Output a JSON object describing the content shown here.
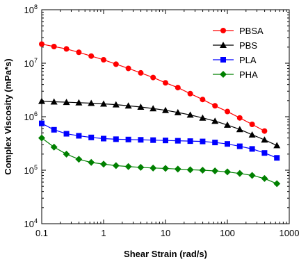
{
  "chart_data": {
    "type": "line",
    "xscale": "log",
    "yscale": "log",
    "xlabel": "Shear Strain (rad/s)",
    "ylabel": "Complex Viscosity (mPa*s)",
    "xlim": [
      0.1,
      1000
    ],
    "ylim": [
      10000,
      100000000
    ],
    "x_ticks": [
      "0.1",
      "1",
      "10",
      "100",
      "1000"
    ],
    "y_ticks": [
      {
        "base": "10",
        "exp": "4",
        "value": 10000
      },
      {
        "base": "10",
        "exp": "5",
        "value": 100000
      },
      {
        "base": "10",
        "exp": "6",
        "value": 1000000
      },
      {
        "base": "10",
        "exp": "7",
        "value": 10000000
      },
      {
        "base": "10",
        "exp": "8",
        "value": 100000000
      }
    ],
    "legend_position": "top-right",
    "x": [
      0.1,
      0.158,
      0.251,
      0.398,
      0.631,
      1.0,
      1.585,
      2.512,
      3.981,
      6.31,
      10.0,
      15.85,
      25.12,
      39.81,
      63.1,
      100.0,
      158.5,
      251.2,
      398.1,
      631.0
    ],
    "series": [
      {
        "name": "PBSA",
        "color": "#ff0000",
        "marker": "circle",
        "values": [
          22800000,
          20500000,
          18500000,
          16000000,
          13600000,
          11600000,
          9600000,
          8000000,
          6600000,
          5400000,
          4300000,
          3500000,
          2700000,
          2100000,
          1600000,
          1250000,
          950000,
          720000,
          540000,
          0
        ]
      },
      {
        "name": "PBS",
        "color": "#000000",
        "marker": "triangle",
        "values": [
          1950000,
          1900000,
          1870000,
          1830000,
          1790000,
          1740000,
          1680000,
          1600000,
          1520000,
          1420000,
          1320000,
          1200000,
          1080000,
          950000,
          830000,
          700000,
          580000,
          460000,
          370000,
          290000
        ]
      },
      {
        "name": "PLA",
        "color": "#0000ff",
        "marker": "square",
        "values": [
          750000,
          570000,
          480000,
          440000,
          410000,
          390000,
          380000,
          375000,
          370000,
          365000,
          360000,
          355000,
          350000,
          345000,
          330000,
          310000,
          280000,
          250000,
          210000,
          170000
        ]
      },
      {
        "name": "PHA",
        "color": "#008000",
        "marker": "diamond",
        "values": [
          400000,
          270000,
          200000,
          160000,
          140000,
          130000,
          122000,
          117000,
          113000,
          110000,
          108000,
          105000,
          102000,
          100000,
          97000,
          93000,
          87000,
          80000,
          70000,
          56000
        ]
      }
    ]
  }
}
